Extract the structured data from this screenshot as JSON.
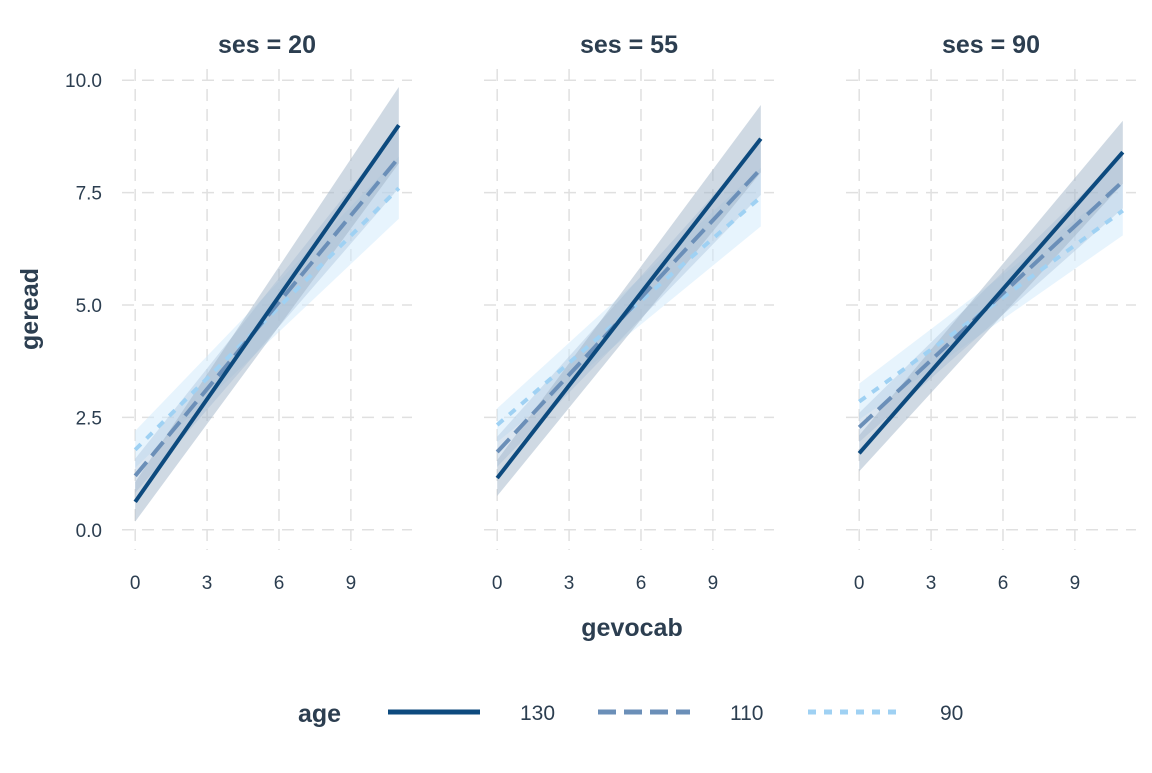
{
  "chart_data": {
    "type": "line",
    "facet_variable": "ses",
    "facets": [
      {
        "title": "ses = 20",
        "series": [
          {
            "name": "130",
            "x": [
              0,
              11
            ],
            "y": [
              0.62,
              9.0
            ],
            "lower": [
              0.18,
              8.15
            ],
            "upper": [
              1.06,
              9.85
            ]
          },
          {
            "name": "110",
            "x": [
              0,
              11
            ],
            "y": [
              1.2,
              8.28
            ],
            "lower": [
              0.82,
              7.6
            ],
            "upper": [
              1.58,
              8.95
            ]
          },
          {
            "name": "90",
            "x": [
              0,
              11
            ],
            "y": [
              1.78,
              7.6
            ],
            "lower": [
              1.38,
              6.92
            ],
            "upper": [
              2.2,
              8.3
            ]
          }
        ]
      },
      {
        "title": "ses = 55",
        "series": [
          {
            "name": "130",
            "x": [
              0,
              11
            ],
            "y": [
              1.15,
              8.7
            ],
            "lower": [
              0.75,
              7.95
            ],
            "upper": [
              1.55,
              9.45
            ]
          },
          {
            "name": "110",
            "x": [
              0,
              11
            ],
            "y": [
              1.73,
              8.03
            ],
            "lower": [
              1.4,
              7.45
            ],
            "upper": [
              2.07,
              8.62
            ]
          },
          {
            "name": "90",
            "x": [
              0,
              11
            ],
            "y": [
              2.33,
              7.4
            ],
            "lower": [
              1.95,
              6.75
            ],
            "upper": [
              2.7,
              8.05
            ]
          }
        ]
      },
      {
        "title": "ses = 90",
        "series": [
          {
            "name": "130",
            "x": [
              0,
              11
            ],
            "y": [
              1.7,
              8.4
            ],
            "lower": [
              1.3,
              7.7
            ],
            "upper": [
              2.1,
              9.1
            ]
          },
          {
            "name": "110",
            "x": [
              0,
              11
            ],
            "y": [
              2.28,
              7.75
            ],
            "lower": [
              1.95,
              7.15
            ],
            "upper": [
              2.6,
              8.35
            ]
          },
          {
            "name": "90",
            "x": [
              0,
              11
            ],
            "y": [
              2.85,
              7.1
            ],
            "lower": [
              2.45,
              6.55
            ],
            "upper": [
              3.25,
              7.7
            ]
          }
        ]
      }
    ],
    "xlabel": "gevocab",
    "ylabel": "geread",
    "xlim": [
      -0.55,
      11.55
    ],
    "ylim": [
      -0.45,
      10.25
    ],
    "x_ticks": [
      "0",
      "3",
      "6",
      "9"
    ],
    "x_tick_values": [
      0,
      3,
      6,
      9
    ],
    "y_ticks": [
      "0.0",
      "2.5",
      "5.0",
      "7.5",
      "10.0"
    ],
    "y_tick_values": [
      0,
      2.5,
      5,
      7.5,
      10
    ],
    "grid": "dashed",
    "legend": {
      "title": "age",
      "position": "bottom",
      "entries": [
        {
          "label": "130",
          "color": "#0d4a7e",
          "dash": "solid"
        },
        {
          "label": "110",
          "color": "#6b8fb8",
          "dash": "dashed"
        },
        {
          "label": "90",
          "color": "#9fd1f3",
          "dash": "dotted"
        }
      ]
    },
    "colors": {
      "130": "#0d4a7e",
      "110": "#6b8fb8",
      "90": "#9fd1f3",
      "band_130": "#9fb4c8",
      "band_110": "#aec6de",
      "band_90": "#cfe9fb",
      "text": "#2c3e50",
      "grid": "#e0e0e0"
    }
  }
}
